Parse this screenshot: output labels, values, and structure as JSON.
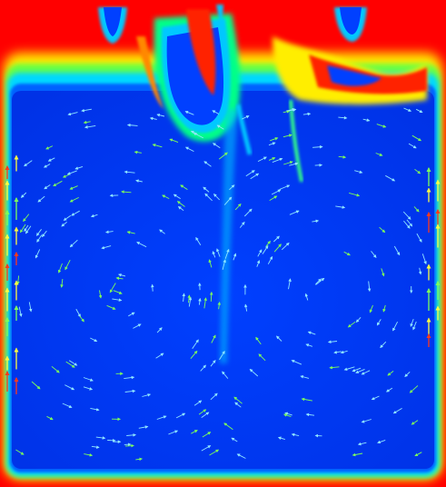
{
  "figure": {
    "kind": "flow-field-visualization",
    "colormap": [
      "#0033ff",
      "#0055ff",
      "#00c8ff",
      "#00ff88",
      "#aaff00",
      "#ffff00",
      "#ff8800",
      "#ff0000"
    ],
    "colors": {
      "background_hot": "#ff0000",
      "interior_cold": "#0038f0",
      "arrow_light": "#8fe6ff",
      "arrow_green": "#7dff5a",
      "arrow_yellow": "#ffff40",
      "arrow_red": "#ff3a1a"
    }
  }
}
